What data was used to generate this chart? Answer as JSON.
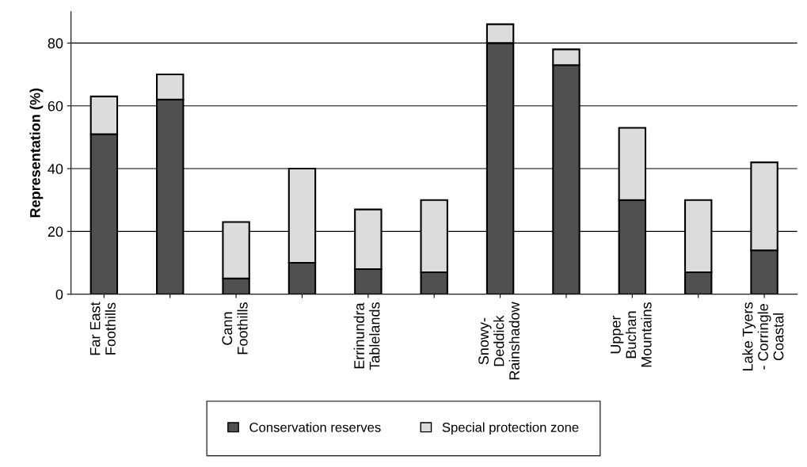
{
  "chart_data": {
    "type": "bar",
    "stacked": true,
    "ylabel": "Representation (%)",
    "categories": [
      "Far East\nFoothills",
      null,
      "Cann\nFoothills",
      null,
      "Errinundra\nTablelands",
      null,
      "Snowy-\nDeddick\nRainshadow",
      null,
      "Upper\nBuchan\nMountains",
      null,
      "Lake Tyers\n- Corringle\nCoastal"
    ],
    "series": [
      {
        "name": "Conservation reserves",
        "color": "#505050",
        "values": [
          51,
          62,
          5,
          10,
          8,
          7,
          80,
          73,
          30,
          7,
          14
        ]
      },
      {
        "name": "Special protection zone",
        "color": "#dcdcdc",
        "values": [
          12,
          8,
          18,
          30,
          19,
          23,
          6,
          5,
          23,
          23,
          28
        ]
      }
    ],
    "ylim": [
      0,
      90
    ],
    "yticks": [
      0,
      20,
      40,
      60,
      80
    ],
    "grid": "y",
    "legend": "bottom"
  }
}
